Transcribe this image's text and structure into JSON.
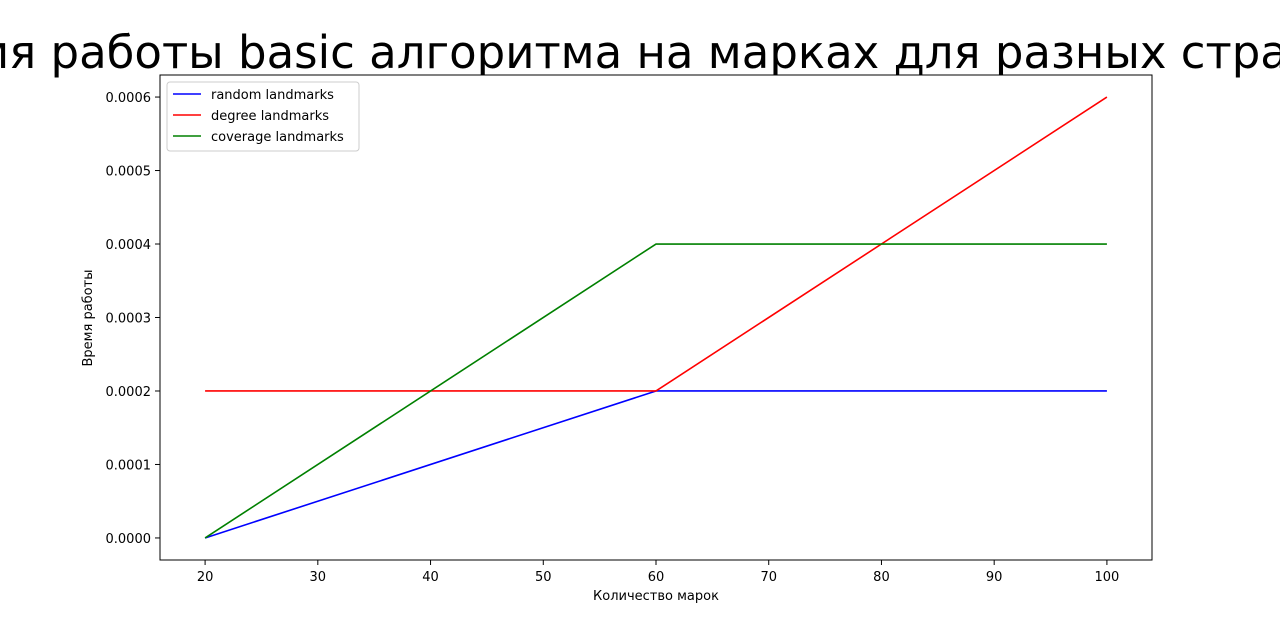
{
  "chart_data": {
    "type": "line",
    "title": "Время работы basic алгоритма на марках для разных стратегий",
    "xlabel": "Количество марок",
    "ylabel": "Время работы",
    "x": [
      20,
      60,
      100
    ],
    "xlim": [
      16,
      104
    ],
    "ylim": [
      -3e-05,
      0.00063
    ],
    "xticks": [
      20,
      30,
      40,
      50,
      60,
      70,
      80,
      90,
      100
    ],
    "yticks": [
      0.0,
      0.0001,
      0.0002,
      0.0003,
      0.0004,
      0.0005,
      0.0006
    ],
    "xtick_labels": [
      "20",
      "30",
      "40",
      "50",
      "60",
      "70",
      "80",
      "90",
      "100"
    ],
    "ytick_labels": [
      "0.0000",
      "0.0001",
      "0.0002",
      "0.0003",
      "0.0004",
      "0.0005",
      "0.0006"
    ],
    "grid": false,
    "legend_position": "top-left",
    "series": [
      {
        "name": "random landmarks",
        "color": "#0000ff",
        "values": [
          0.0,
          0.0002,
          0.0002
        ]
      },
      {
        "name": "degree landmarks",
        "color": "#ff0000",
        "values": [
          0.0002,
          0.0002,
          0.0006
        ]
      },
      {
        "name": "coverage landmarks",
        "color": "#008000",
        "values": [
          0.0,
          0.0004,
          0.0004
        ]
      }
    ]
  }
}
